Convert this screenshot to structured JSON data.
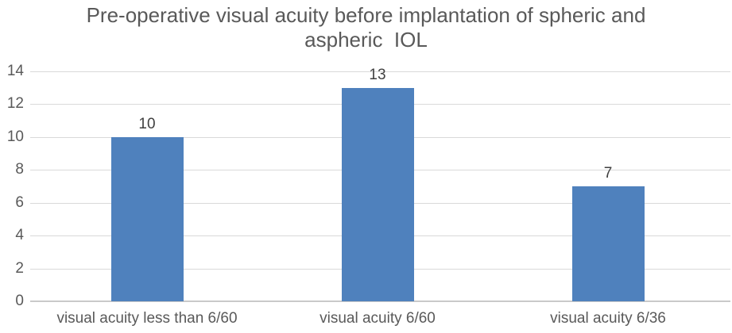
{
  "chart_data": {
    "type": "bar",
    "title": "Pre-operative visual acuity before implantation of spheric and aspheric  IOL",
    "title_lines": [
      "Pre-operative visual acuity before implantation of spheric and",
      "aspheric  IOL"
    ],
    "categories": [
      "visual acuity less than 6/60",
      "visual acuity 6/60",
      "visual acuity 6/36"
    ],
    "values": [
      10,
      13,
      7
    ],
    "data_labels": [
      10,
      13,
      7
    ],
    "xlabel": "",
    "ylabel": "",
    "y_ticks": [
      0,
      2,
      4,
      6,
      8,
      10,
      12,
      14
    ],
    "ylim": [
      0,
      14
    ],
    "grid": true,
    "legend": "none",
    "colors": {
      "bar": "#4F81BD",
      "title_text": "#595959",
      "axis_text": "#595959",
      "value_text": "#404040",
      "gridline": "#D9D9D9",
      "axis_line": "#C9C9C9",
      "background": "#FFFFFF"
    }
  }
}
